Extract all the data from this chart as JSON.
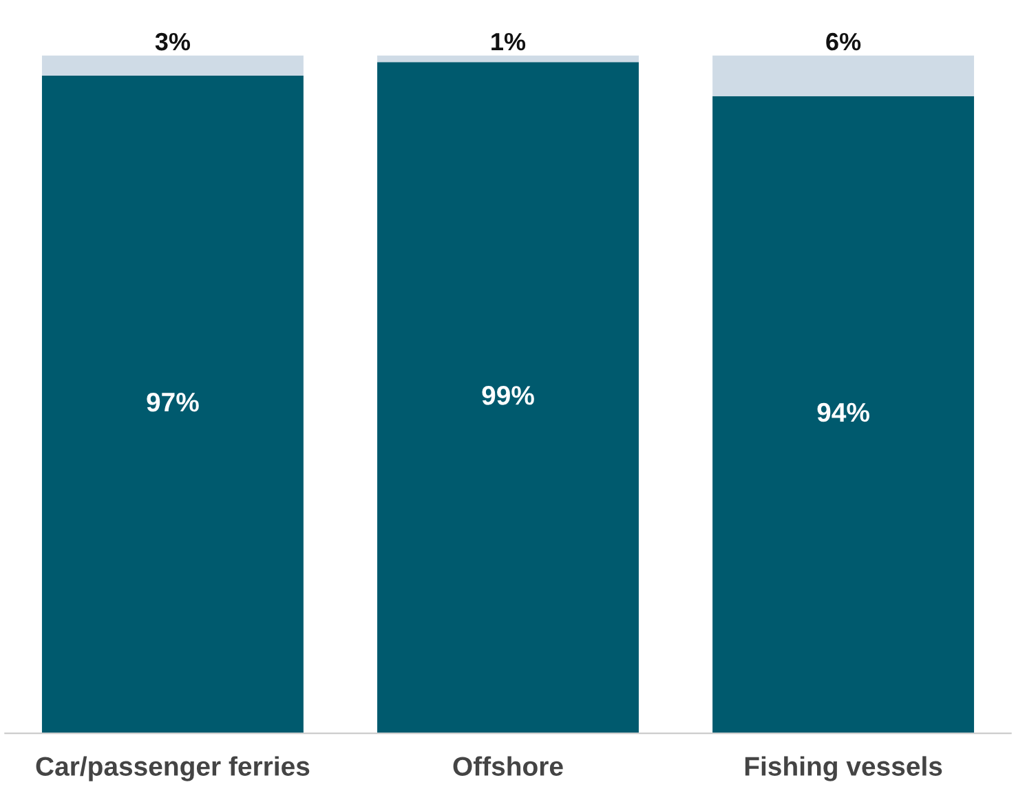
{
  "chart_data": {
    "type": "bar",
    "stacked": true,
    "categories": [
      "Car/passenger ferries",
      "Offshore",
      "Fishing vessels"
    ],
    "series": [
      {
        "color": "#005a6e",
        "values": [
          97,
          99,
          94
        ],
        "value_labels": [
          "97%",
          "99%",
          "94%"
        ]
      },
      {
        "color": "#cfdbe6",
        "values": [
          3,
          1,
          6
        ],
        "value_labels": [
          "3%",
          "1%",
          "6%"
        ]
      }
    ]
  }
}
